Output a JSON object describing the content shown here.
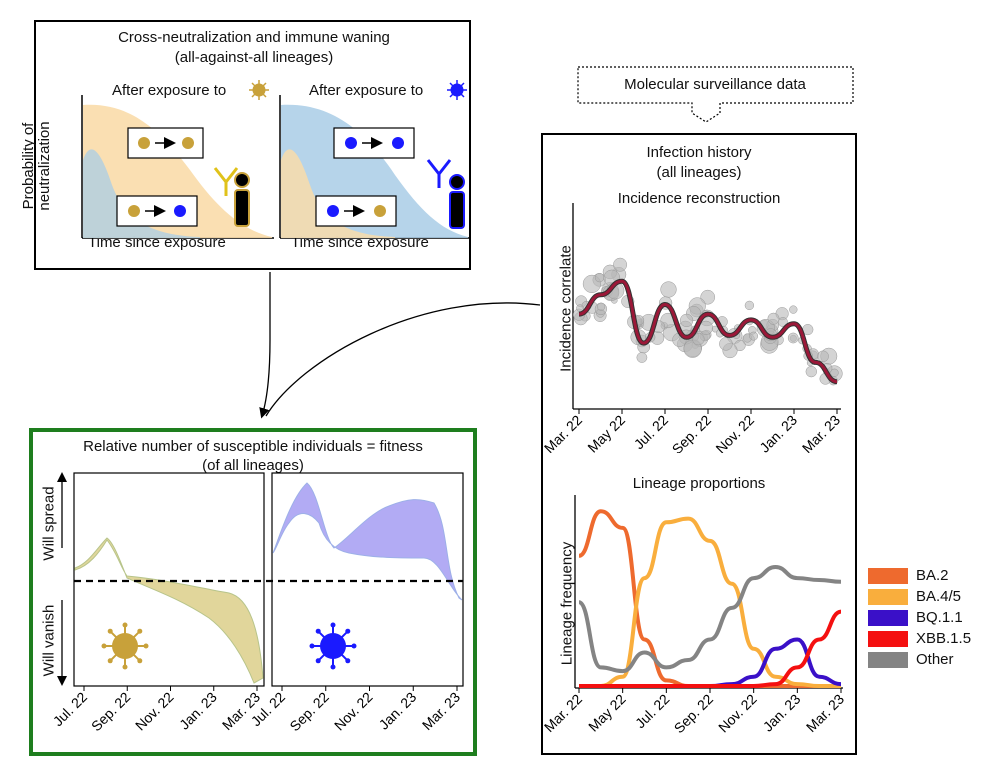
{
  "immune": {
    "title_line1": "Cross-neutralization and immune waning",
    "title_line2": "(all-against-all lineages)",
    "left_label": "After exposure to",
    "right_label": "After exposure to",
    "yaxis_line1": "Probability of",
    "yaxis_line2": "neutralization",
    "xaxis_left": "Time since exposure",
    "xaxis_right": "Time since exposure"
  },
  "surveillance": {
    "label": "Molecular surveillance data"
  },
  "infection": {
    "title_line1": "Infection history",
    "title_line2": "(all lineages)"
  },
  "incidence": {
    "title": "Incidence reconstruction",
    "ylabel": "Incidence correlate",
    "ticks": [
      "Mar. 22",
      "May 22",
      "Jul. 22",
      "Sep. 22",
      "Nov. 22",
      "Jan. 23",
      "Mar. 23"
    ]
  },
  "lineage": {
    "title": "Lineage proportions",
    "ylabel": "Lineage frequency",
    "ticks": [
      "Mar. 22",
      "May 22",
      "Jul. 22",
      "Sep. 22",
      "Nov. 22",
      "Jan. 23",
      "Mar. 23"
    ]
  },
  "fitness": {
    "title_line1": "Relative number of susceptible individuals = fitness",
    "title_line2": "(of all lineages)",
    "spread": "Will spread",
    "vanish": "Will vanish",
    "ticks": [
      "Jul. 22",
      "Sep. 22",
      "Nov. 22",
      "Jan. 23",
      "Mar. 23"
    ]
  },
  "legend": [
    {
      "label": "BA.2",
      "color": "#ee6a2e"
    },
    {
      "label": "BA.4/5",
      "color": "#f9ae3d"
    },
    {
      "label": "BQ.1.1",
      "color": "#3a10c8"
    },
    {
      "label": "XBB.1.5",
      "color": "#f41010"
    },
    {
      "label": "Other",
      "color": "#848484"
    }
  ],
  "colors": {
    "gold": "#c8a13a",
    "blue": "#1a1aff",
    "orange_fill": "#f9dcaa",
    "blue_fill": "#a9cde6",
    "green_border": "#1e7e1e",
    "incidence_line": "#9b1838"
  },
  "chart_data": [
    {
      "type": "line",
      "title": "Incidence reconstruction",
      "ylabel": "Incidence correlate",
      "xlabel": "",
      "x": [
        "Mar. 22",
        "Apr. 22",
        "May 22",
        "Jun. 22",
        "Jul. 22",
        "Aug. 22",
        "Sep. 22",
        "Oct. 22",
        "Nov. 22",
        "Dec. 22",
        "Jan. 23",
        "Feb. 23",
        "Mar. 23"
      ],
      "series": [
        {
          "name": "reconstruction",
          "values": [
            0.45,
            0.55,
            0.62,
            0.3,
            0.5,
            0.33,
            0.45,
            0.34,
            0.42,
            0.33,
            0.4,
            0.2,
            0.1
          ]
        }
      ],
      "ylim": [
        0,
        1
      ]
    },
    {
      "type": "line",
      "title": "Lineage proportions",
      "ylabel": "Lineage frequency",
      "xlabel": "",
      "x": [
        "Mar. 22",
        "Apr. 22",
        "May 22",
        "Jun. 22",
        "Jul. 22",
        "Aug. 22",
        "Sep. 22",
        "Oct. 22",
        "Nov. 22",
        "Dec. 22",
        "Jan. 23",
        "Feb. 23",
        "Mar. 23"
      ],
      "series": [
        {
          "name": "BA.2",
          "values": [
            0.7,
            0.94,
            0.85,
            0.25,
            0.03,
            0.0,
            0.0,
            0.0,
            0.0,
            0.0,
            0.0,
            0.0,
            0.0
          ]
        },
        {
          "name": "BA.4/5",
          "values": [
            0.0,
            0.0,
            0.05,
            0.58,
            0.88,
            0.9,
            0.78,
            0.55,
            0.2,
            0.05,
            0.01,
            0.0,
            0.0
          ]
        },
        {
          "name": "BQ.1.1",
          "values": [
            0.0,
            0.0,
            0.0,
            0.0,
            0.0,
            0.0,
            0.0,
            0.01,
            0.05,
            0.2,
            0.25,
            0.05,
            0.01
          ]
        },
        {
          "name": "XBB.1.5",
          "values": [
            0.0,
            0.0,
            0.0,
            0.0,
            0.0,
            0.0,
            0.0,
            0.0,
            0.0,
            0.01,
            0.1,
            0.25,
            0.4
          ]
        },
        {
          "name": "Other",
          "values": [
            0.45,
            0.1,
            0.08,
            0.18,
            0.1,
            0.14,
            0.25,
            0.42,
            0.58,
            0.64,
            0.58,
            0.57,
            0.56
          ]
        }
      ],
      "ylim": [
        0,
        1
      ]
    }
  ]
}
